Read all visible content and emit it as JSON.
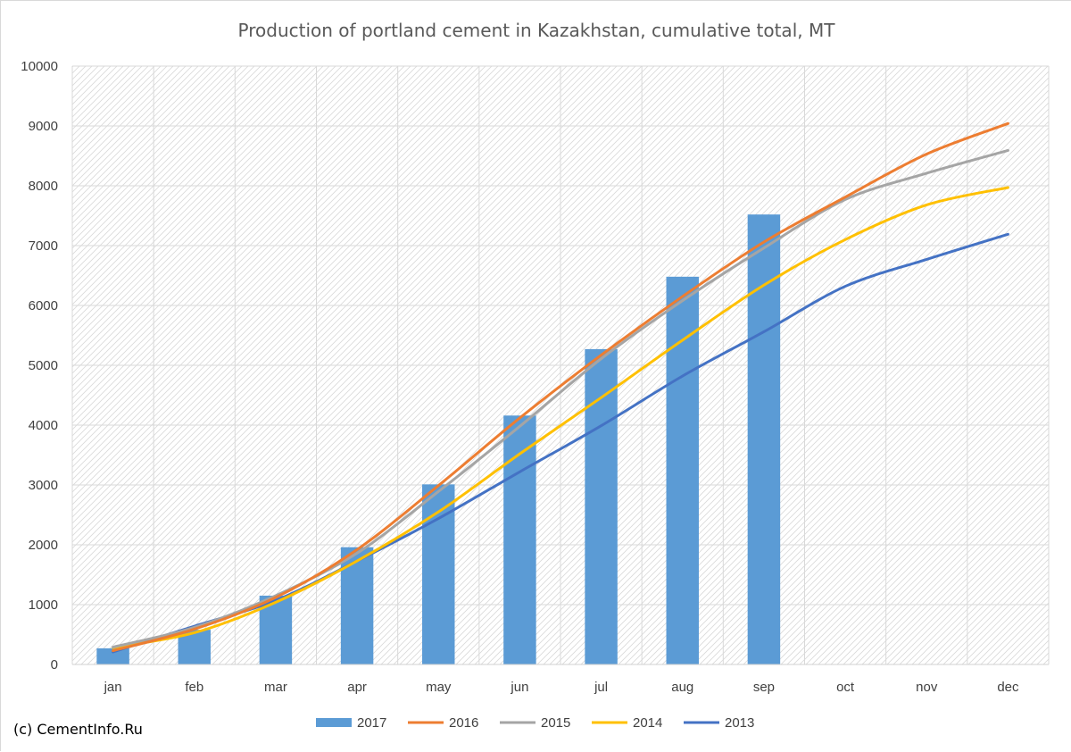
{
  "chart_data": {
    "type": "bar+line",
    "title": "Production of portland cement in Kazakhstan, cumulative total, MT",
    "categories": [
      "jan",
      "feb",
      "mar",
      "apr",
      "may",
      "jun",
      "jul",
      "aug",
      "sep",
      "oct",
      "nov",
      "dec"
    ],
    "ylim": [
      0,
      10000
    ],
    "yticks": [
      0,
      1000,
      2000,
      3000,
      4000,
      5000,
      6000,
      7000,
      8000,
      9000,
      10000
    ],
    "grid": true,
    "legend_position": "bottom",
    "bar_series": {
      "name": "2017",
      "color": "#5b9bd5",
      "values": [
        270,
        580,
        1150,
        1960,
        3010,
        4160,
        5270,
        6480,
        7520,
        null,
        null,
        null
      ]
    },
    "line_series": [
      {
        "name": "2016",
        "color": "#ed7d31",
        "values": [
          230,
          590,
          1120,
          1920,
          2990,
          4120,
          5170,
          6150,
          7060,
          7810,
          8530,
          9040
        ]
      },
      {
        "name": "2015",
        "color": "#a5a5a5",
        "values": [
          290,
          620,
          1150,
          1860,
          2890,
          3980,
          5110,
          6080,
          6960,
          7770,
          8210,
          8590
        ]
      },
      {
        "name": "2014",
        "color": "#ffc000",
        "values": [
          280,
          530,
          1040,
          1730,
          2550,
          3520,
          4460,
          5420,
          6340,
          7100,
          7680,
          7970
        ]
      },
      {
        "name": "2013",
        "color": "#4472c4",
        "values": [
          210,
          640,
          1070,
          1730,
          2440,
          3220,
          3990,
          4820,
          5560,
          6320,
          6770,
          7190
        ]
      }
    ]
  },
  "footer": {
    "copyright": "(c) CementInfo.Ru"
  }
}
